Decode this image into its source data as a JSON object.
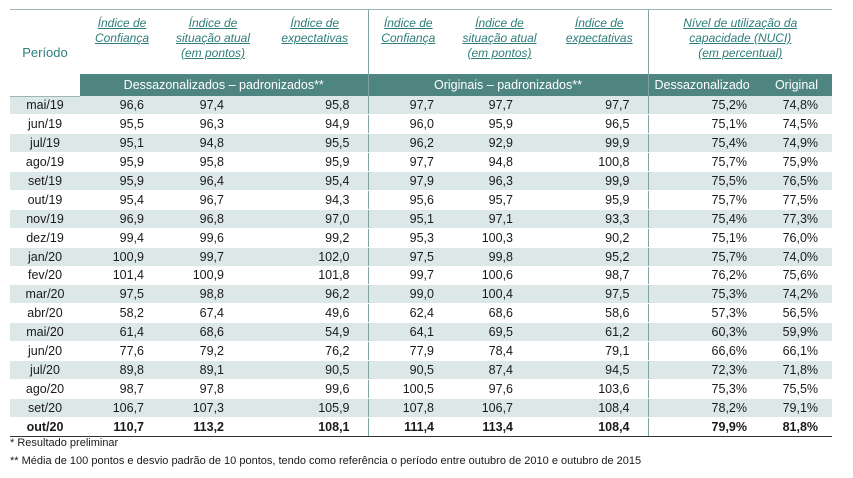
{
  "header": {
    "periodo": "Período",
    "col1": [
      "Índice de",
      "Confiança"
    ],
    "col2": [
      "Índice de",
      "situação atual",
      "(em pontos)"
    ],
    "col3": [
      "Índice de",
      "expectativas"
    ],
    "col4": [
      "Índice de",
      "Confiança"
    ],
    "col5": [
      "Índice de",
      "situação atual",
      "(em pontos)"
    ],
    "col6": [
      "Índice de",
      "expectativas"
    ],
    "col7": [
      "Nível de utilização da",
      "capacidade (NUCI)",
      "(em percentual)"
    ]
  },
  "band": {
    "dessaz_padr": "Dessazonalizados – padronizados**",
    "orig_padr": "Originais – padronizados**",
    "dessaz": "Dessazonalizado",
    "original": "Original"
  },
  "rows": [
    {
      "p": "mai/19",
      "v": [
        "96,6",
        "97,4",
        "95,8",
        "97,7",
        "97,7",
        "97,7",
        "75,2%",
        "74,8%"
      ]
    },
    {
      "p": "jun/19",
      "v": [
        "95,5",
        "96,3",
        "94,9",
        "96,0",
        "95,9",
        "96,5",
        "75,1%",
        "74,5%"
      ]
    },
    {
      "p": "jul/19",
      "v": [
        "95,1",
        "94,8",
        "95,5",
        "96,2",
        "92,9",
        "99,9",
        "75,4%",
        "74,9%"
      ]
    },
    {
      "p": "ago/19",
      "v": [
        "95,9",
        "95,8",
        "95,9",
        "97,7",
        "94,8",
        "100,8",
        "75,7%",
        "75,9%"
      ]
    },
    {
      "p": "set/19",
      "v": [
        "95,9",
        "96,4",
        "95,4",
        "97,9",
        "96,3",
        "99,9",
        "75,5%",
        "76,5%"
      ]
    },
    {
      "p": "out/19",
      "v": [
        "95,4",
        "96,7",
        "94,3",
        "95,6",
        "95,7",
        "95,9",
        "75,7%",
        "77,5%"
      ]
    },
    {
      "p": "nov/19",
      "v": [
        "96,9",
        "96,8",
        "97,0",
        "95,1",
        "97,1",
        "93,3",
        "75,4%",
        "77,3%"
      ]
    },
    {
      "p": "dez/19",
      "v": [
        "99,4",
        "99,6",
        "99,2",
        "95,3",
        "100,3",
        "90,2",
        "75,1%",
        "76,0%"
      ]
    },
    {
      "p": "jan/20",
      "v": [
        "100,9",
        "99,7",
        "102,0",
        "97,5",
        "99,8",
        "95,2",
        "75,7%",
        "74,0%"
      ]
    },
    {
      "p": "fev/20",
      "v": [
        "101,4",
        "100,9",
        "101,8",
        "99,7",
        "100,6",
        "98,7",
        "76,2%",
        "75,6%"
      ]
    },
    {
      "p": "mar/20",
      "v": [
        "97,5",
        "98,8",
        "96,2",
        "99,0",
        "100,4",
        "97,5",
        "75,3%",
        "74,2%"
      ]
    },
    {
      "p": "abr/20",
      "v": [
        "58,2",
        "67,4",
        "49,6",
        "62,4",
        "68,6",
        "58,6",
        "57,3%",
        "56,5%"
      ]
    },
    {
      "p": "mai/20",
      "v": [
        "61,4",
        "68,6",
        "54,9",
        "64,1",
        "69,5",
        "61,2",
        "60,3%",
        "59,9%"
      ]
    },
    {
      "p": "jun/20",
      "v": [
        "77,6",
        "79,2",
        "76,2",
        "77,9",
        "78,4",
        "79,1",
        "66,6%",
        "66,1%"
      ]
    },
    {
      "p": "jul/20",
      "v": [
        "89,8",
        "89,1",
        "90,5",
        "90,5",
        "87,4",
        "94,5",
        "72,3%",
        "71,8%"
      ]
    },
    {
      "p": "ago/20",
      "v": [
        "98,7",
        "97,8",
        "99,6",
        "100,5",
        "97,6",
        "103,6",
        "75,3%",
        "75,5%"
      ]
    },
    {
      "p": "set/20",
      "v": [
        "106,7",
        "107,3",
        "105,9",
        "107,8",
        "106,7",
        "108,4",
        "78,2%",
        "79,1%"
      ]
    },
    {
      "p": "out/20",
      "v": [
        "110,7",
        "113,2",
        "108,1",
        "111,4",
        "113,4",
        "108,4",
        "79,9%",
        "81,8%"
      ]
    }
  ],
  "footnotes": {
    "f1": "*   Resultado preliminar",
    "f2": "** Média de 100 pontos e desvio padrão de 10 pontos, tendo como referência o período entre outubro de 2010 e outubro de 2015"
  }
}
